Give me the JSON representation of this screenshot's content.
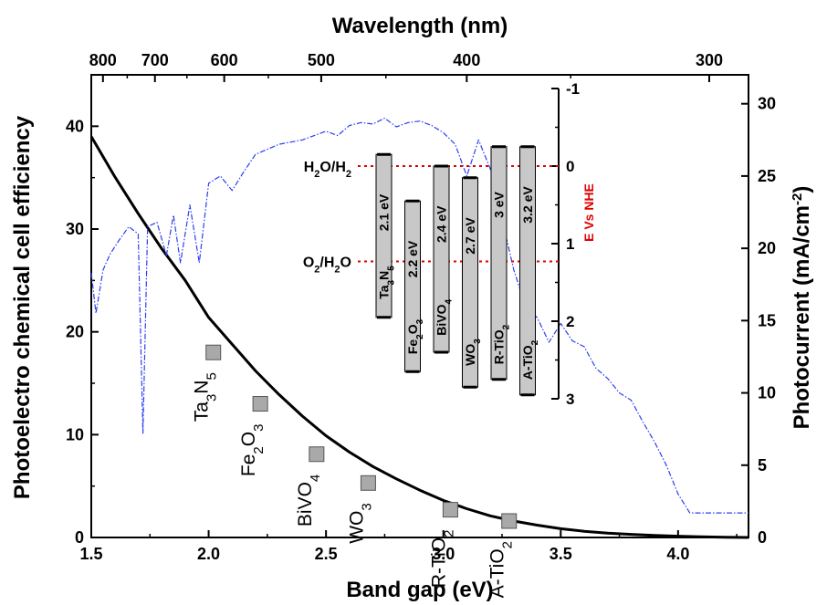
{
  "chart_data": {
    "type": "line",
    "xlabel": "Band gap (eV)",
    "x2label": "Wavelength (nm)",
    "ylabel": "Photoelectro chemical cell efficiency",
    "y2label": "Photocurrent (mA/cm-2)",
    "xlim": [
      1.5,
      4.3
    ],
    "ylim": [
      0,
      45
    ],
    "y2lim": [
      0,
      32
    ],
    "x_ticks": [
      "1.5",
      "2.0",
      "2.5",
      "3.0",
      "3.5",
      "4.0"
    ],
    "y_ticks": [
      "0",
      "10",
      "20",
      "30",
      "40"
    ],
    "y2_ticks": [
      "0",
      "5",
      "10",
      "15",
      "20",
      "25",
      "30"
    ],
    "x2_ticks": [
      "800",
      "700",
      "600",
      "500",
      "400",
      "300"
    ],
    "grid": false,
    "series": [
      {
        "kind": "efficiency-curve",
        "color": "#000000",
        "x": [
          1.5,
          1.6,
          1.7,
          1.8,
          1.9,
          2.0,
          2.1,
          2.2,
          2.3,
          2.4,
          2.5,
          2.6,
          2.7,
          2.8,
          2.9,
          3.0,
          3.1,
          3.2,
          3.3,
          3.4,
          3.5,
          3.6,
          3.7,
          3.8,
          3.9,
          4.0,
          4.1,
          4.2,
          4.3
        ],
        "y": [
          39.0,
          35.1,
          31.5,
          28.1,
          25.0,
          21.4,
          18.8,
          16.2,
          13.9,
          11.8,
          9.9,
          8.3,
          6.9,
          5.7,
          4.6,
          3.6,
          2.8,
          2.1,
          1.6,
          1.2,
          0.85,
          0.6,
          0.42,
          0.3,
          0.2,
          0.12,
          0.06,
          0.02,
          0.0
        ]
      },
      {
        "kind": "solar-photocurrent",
        "color": "#2b3ff0",
        "x": [
          1.5,
          1.52,
          1.55,
          1.58,
          1.62,
          1.66,
          1.7,
          1.72,
          1.74,
          1.78,
          1.82,
          1.85,
          1.88,
          1.92,
          1.96,
          2.0,
          2.05,
          2.1,
          2.15,
          2.2,
          2.3,
          2.4,
          2.5,
          2.55,
          2.6,
          2.65,
          2.7,
          2.75,
          2.8,
          2.85,
          2.9,
          2.95,
          3.0,
          3.05,
          3.1,
          3.15,
          3.2,
          3.25,
          3.3,
          3.35,
          3.4,
          3.45,
          3.5,
          3.55,
          3.6,
          3.65,
          3.7,
          3.75,
          3.8,
          3.85,
          3.9,
          3.95,
          4.0,
          4.05,
          4.1,
          4.2,
          4.3
        ],
        "y": [
          18.3,
          15.5,
          18.5,
          19.6,
          20.6,
          21.5,
          21.0,
          7.2,
          21.5,
          21.8,
          19.5,
          22.3,
          19.0,
          23.0,
          19.0,
          24.5,
          25.0,
          24.0,
          25.3,
          26.5,
          27.2,
          27.5,
          28.1,
          27.8,
          28.5,
          28.7,
          28.6,
          29.0,
          28.4,
          28.7,
          28.8,
          28.5,
          28.0,
          27.2,
          25.0,
          27.5,
          25.5,
          22.0,
          18.5,
          16.0,
          15.2,
          13.5,
          14.8,
          13.6,
          13.2,
          11.7,
          11.0,
          10.0,
          9.5,
          8.0,
          6.6,
          5.0,
          3.0,
          1.7,
          1.7,
          1.7,
          1.7
        ]
      }
    ],
    "points": [
      {
        "x": 2.02,
        "y": 18.0,
        "label_main": "Ta",
        "label_sub1": "3",
        "label_mid": "N",
        "label_sub2": "5"
      },
      {
        "x": 2.22,
        "y": 13.0,
        "label_main": "Fe",
        "label_sub1": "2",
        "label_mid": "O",
        "label_sub2": "3"
      },
      {
        "x": 2.46,
        "y": 8.1,
        "label_main": "BiVO",
        "label_sub1": "4",
        "label_mid": "",
        "label_sub2": ""
      },
      {
        "x": 2.68,
        "y": 5.3,
        "label_main": "WO",
        "label_sub1": "3",
        "label_mid": "",
        "label_sub2": ""
      },
      {
        "x": 3.03,
        "y": 2.7,
        "label_main": "R-TiO",
        "label_sub1": "2",
        "label_mid": "",
        "label_sub2": ""
      },
      {
        "x": 3.28,
        "y": 1.6,
        "label_main": "A-TiO",
        "label_sub1": "2",
        "label_mid": "",
        "label_sub2": ""
      }
    ],
    "inset": {
      "axis_label": "E Vs NHE",
      "ticks": [
        "-1",
        "0",
        "1",
        "2",
        "3"
      ],
      "ylim": [
        -1,
        3
      ],
      "redox_levels": [
        {
          "name_a": "H",
          "sub_a": "2",
          "name_b": "O/H",
          "sub_b": "2",
          "potential": 0.0
        },
        {
          "name_a": "O",
          "sub_a": "2",
          "name_b": "/H",
          "sub_b": "2",
          "name_c": "O",
          "potential": 1.23
        }
      ],
      "bands": [
        {
          "material_main": "Ta",
          "material_sub1": "3",
          "material_mid": "N",
          "material_sub2": "5",
          "gap": "2.1 eV",
          "cb": -0.15,
          "vb": 1.95
        },
        {
          "material_main": "Fe",
          "material_sub1": "2",
          "material_mid": "O",
          "material_sub2": "3",
          "gap": "2.2 eV",
          "cb": 0.45,
          "vb": 2.65
        },
        {
          "material_main": "BiVO",
          "material_sub1": "4",
          "material_mid": "",
          "material_sub2": "",
          "gap": "2.4 eV",
          "cb": 0.0,
          "vb": 2.4
        },
        {
          "material_main": "WO",
          "material_sub1": "3",
          "material_mid": "",
          "material_sub2": "",
          "gap": "2.7 eV",
          "cb": 0.15,
          "vb": 2.85
        },
        {
          "material_main": "R-TiO",
          "material_sub1": "2",
          "material_mid": "",
          "material_sub2": "",
          "gap": "3 eV",
          "cb": -0.25,
          "vb": 2.75
        },
        {
          "material_main": "A-TiO",
          "material_sub1": "2",
          "material_mid": "",
          "material_sub2": "",
          "gap": "3.2 eV",
          "cb": -0.25,
          "vb": 2.95
        }
      ],
      "band_color": "#c8c8c8",
      "redox_color": "#e00000"
    }
  }
}
